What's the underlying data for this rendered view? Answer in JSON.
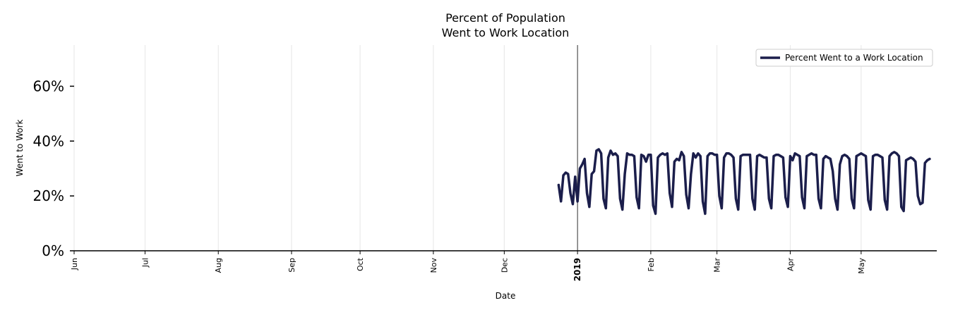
{
  "chart_data": {
    "type": "line",
    "title": [
      "Percent of Population",
      "Went to Work Location"
    ],
    "xlabel": "Date",
    "ylabel": "Went to Work",
    "ylim": [
      0,
      75
    ],
    "yticks": [
      {
        "value": 0,
        "label": "0%"
      },
      {
        "value": 20,
        "label": "20%"
      },
      {
        "value": 40,
        "label": "40%"
      },
      {
        "value": 60,
        "label": "60%"
      }
    ],
    "x_domain_days": [
      0,
      365
    ],
    "xticks": [
      {
        "day": 0,
        "label": "Jun",
        "bold": false
      },
      {
        "day": 30,
        "label": "Jul",
        "bold": false
      },
      {
        "day": 61,
        "label": "Aug",
        "bold": false
      },
      {
        "day": 92,
        "label": "Sep",
        "bold": false
      },
      {
        "day": 121,
        "label": "Oct",
        "bold": false
      },
      {
        "day": 152,
        "label": "Nov",
        "bold": false
      },
      {
        "day": 182,
        "label": "Dec",
        "bold": false
      },
      {
        "day": 213,
        "label": "2019",
        "bold": true
      },
      {
        "day": 244,
        "label": "Feb",
        "bold": false
      },
      {
        "day": 272,
        "label": "Mar",
        "bold": false
      },
      {
        "day": 303,
        "label": "Apr",
        "bold": false
      },
      {
        "day": 333,
        "label": "May",
        "bold": false
      }
    ],
    "vline_day": 213,
    "grid": true,
    "legend": {
      "position": "top-right",
      "entries": [
        "Percent Went to a Work Location"
      ]
    },
    "series": [
      {
        "name": "Percent Went to a Work Location",
        "color": "#1b1e4b",
        "start_day": 205,
        "values": [
          24,
          18,
          27.5,
          28.5,
          28,
          21,
          17,
          27,
          18,
          30,
          31.5,
          33.5,
          21,
          16,
          28,
          29,
          36.5,
          37,
          35.5,
          19,
          15.5,
          34,
          36.5,
          35,
          35.5,
          34.5,
          19,
          15,
          28,
          35.5,
          35,
          35,
          34.5,
          19.5,
          15.5,
          35,
          34.5,
          32.5,
          35,
          35,
          16.5,
          13.5,
          34,
          35,
          35.5,
          35,
          35.5,
          21,
          16,
          32.5,
          33.5,
          33,
          36,
          34.5,
          20.5,
          15.5,
          28,
          35.5,
          34,
          35.5,
          34.5,
          18,
          13.5,
          34.5,
          35.5,
          35.5,
          35,
          35,
          20,
          15.5,
          34,
          35.5,
          35.5,
          35,
          34,
          19,
          15,
          34.5,
          35,
          35,
          35,
          35,
          19,
          15,
          34.5,
          35,
          34.5,
          34,
          34,
          19,
          15.5,
          34.5,
          35,
          35,
          34.5,
          34,
          19.5,
          16,
          34.5,
          33,
          35.5,
          35,
          34.5,
          19.5,
          15.5,
          34.5,
          35,
          35.5,
          35,
          35,
          19,
          15.5,
          33.5,
          34.5,
          34,
          33.5,
          29,
          19,
          15,
          31.5,
          34.5,
          35,
          34.5,
          33.5,
          19,
          15.5,
          34.5,
          35,
          35.5,
          35,
          34.5,
          18.5,
          15,
          34.5,
          35,
          35,
          34.5,
          34,
          18.5,
          15,
          34.5,
          35.5,
          36,
          35.5,
          34.5,
          16,
          14.5,
          33,
          33.5,
          34,
          33.5,
          32.5,
          20,
          17,
          17.5,
          32,
          33,
          33.5
        ]
      }
    ]
  }
}
